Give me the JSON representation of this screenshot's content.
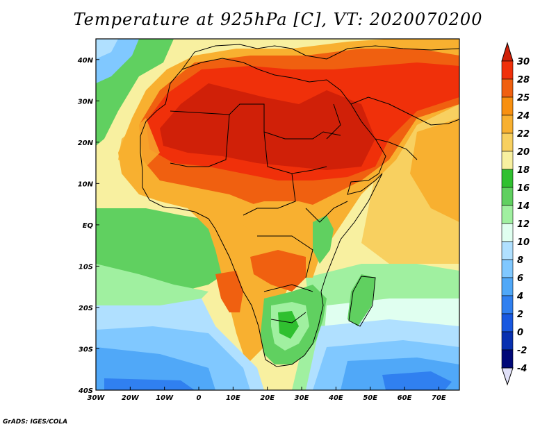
{
  "title": "Temperature at 925hPa [C], VT: 2020070200",
  "footer": "GrADS: IGES/COLA",
  "map": {
    "lon_range": [
      -30,
      76
    ],
    "lat_range": [
      -40,
      45
    ],
    "x_ticks": [
      "30W",
      "20W",
      "10W",
      "0",
      "10E",
      "20E",
      "30E",
      "40E",
      "50E",
      "60E",
      "70E"
    ],
    "y_ticks": [
      "40S",
      "30S",
      "20S",
      "10S",
      "EQ",
      "10N",
      "20N",
      "30N",
      "40N"
    ]
  },
  "colorbar": {
    "levels": [
      "30",
      "28",
      "25",
      "24",
      "22",
      "20",
      "18",
      "16",
      "14",
      "12",
      "10",
      "8",
      "6",
      "4",
      "2",
      "0",
      "-2",
      "-4"
    ],
    "colors": [
      "#f0300a",
      "#f06010",
      "#f89010",
      "#f8b030",
      "#f8d060",
      "#f8f0a0",
      "#30c030",
      "#60d060",
      "#a0f0a0",
      "#e0fff0",
      "#b0e0ff",
      "#80c8ff",
      "#50a8f8",
      "#3080f0",
      "#1858e0",
      "#0830b0",
      "#000878",
      "#000050"
    ],
    "top_color": "#d02008",
    "bottom_color": "#e0e0f8"
  }
}
